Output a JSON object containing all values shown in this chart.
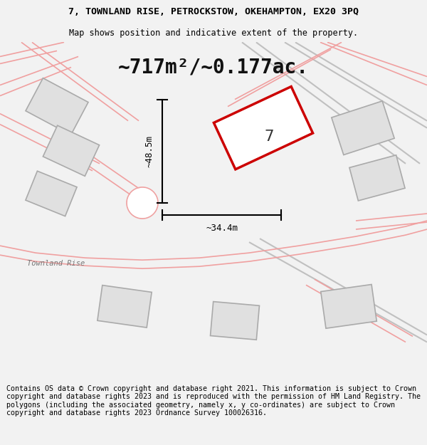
{
  "title_line1": "7, TOWNLAND RISE, PETROCKSTOW, OKEHAMPTON, EX20 3PQ",
  "title_line2": "Map shows position and indicative extent of the property.",
  "area_text": "~717m²/~0.177ac.",
  "dim_horizontal": "~34.4m",
  "dim_vertical": "~48.5m",
  "label_number": "7",
  "footer_text": "Contains OS data © Crown copyright and database right 2021. This information is subject to Crown copyright and database rights 2023 and is reproduced with the permission of HM Land Registry. The polygons (including the associated geometry, namely x, y co-ordinates) are subject to Crown copyright and database rights 2023 Ordnance Survey 100026316.",
  "bg_color": "#f2f2f2",
  "map_bg_color": "#ffffff",
  "road_pink": "#f0a0a0",
  "road_gray": "#c0c0c0",
  "bld_fill": "#e0e0e0",
  "bld_edge": "#aaaaaa",
  "prop_edge": "#cc0000",
  "prop_fill": "#ffffff",
  "dim_color": "#000000",
  "title_fs": 9.5,
  "subtitle_fs": 8.5,
  "area_fs": 20,
  "footer_fs": 7.2,
  "label_fs": 16
}
